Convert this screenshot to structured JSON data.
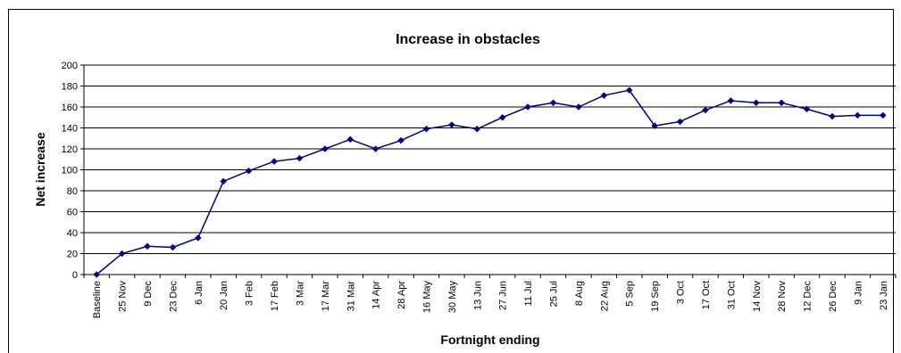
{
  "chart_data": {
    "type": "line",
    "title": "Increase in obstacles",
    "xlabel": "Fortnight ending",
    "ylabel": "Net increase",
    "ylim": [
      0,
      200
    ],
    "yticks": [
      0,
      20,
      40,
      60,
      80,
      100,
      120,
      140,
      160,
      180,
      200
    ],
    "grid": true,
    "legend": "none",
    "line_color": "#000080",
    "categories": [
      "Baseline",
      "25 Nov",
      "9 Dec",
      "23 Dec",
      "6 Jan",
      "20 Jan",
      "3 Feb",
      "17 Feb",
      "3 Mar",
      "17 Mar",
      "31 Mar",
      "14 Apr",
      "28 Apr",
      "16 May",
      "30 May",
      "13 Jun",
      "27 Jun",
      "11 Jul",
      "25 Jul",
      "8 Aug",
      "22 Aug",
      "5 Sep",
      "19 Sep",
      "3 Oct",
      "17 Oct",
      "31 Oct",
      "14 Nov",
      "28 Nov",
      "12 Dec",
      "26 Dec",
      "9 Jan",
      "23 Jan"
    ],
    "values": [
      0,
      20,
      27,
      26,
      35,
      89,
      99,
      108,
      111,
      120,
      129,
      120,
      128,
      139,
      143,
      139,
      150,
      160,
      164,
      160,
      171,
      176,
      142,
      146,
      157,
      166,
      164,
      164,
      158,
      151,
      152,
      152
    ]
  }
}
